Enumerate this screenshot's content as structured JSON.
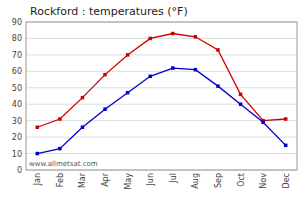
{
  "chart_data": {
    "type": "line",
    "title": "Rockford : temperatures (°F)",
    "categories": [
      "Jan",
      "Feb",
      "Mar",
      "Apr",
      "May",
      "Jun",
      "Jul",
      "Aug",
      "Sep",
      "Oct",
      "Nov",
      "Dec"
    ],
    "series": [
      {
        "color": "#cc0000",
        "marker": "square",
        "values": [
          26,
          31,
          44,
          58,
          70,
          80,
          83,
          81,
          73,
          46,
          30,
          31
        ]
      },
      {
        "color": "#0000cc",
        "marker": "square",
        "values": [
          10,
          13,
          26,
          37,
          47,
          57,
          62,
          61,
          51,
          40,
          29,
          15
        ]
      }
    ],
    "ylim": [
      0,
      90
    ],
    "yticks": [
      0,
      10,
      20,
      30,
      40,
      50,
      60,
      70,
      80,
      90
    ],
    "grid": true,
    "annotations": [
      "www.allmetsat.com"
    ]
  }
}
